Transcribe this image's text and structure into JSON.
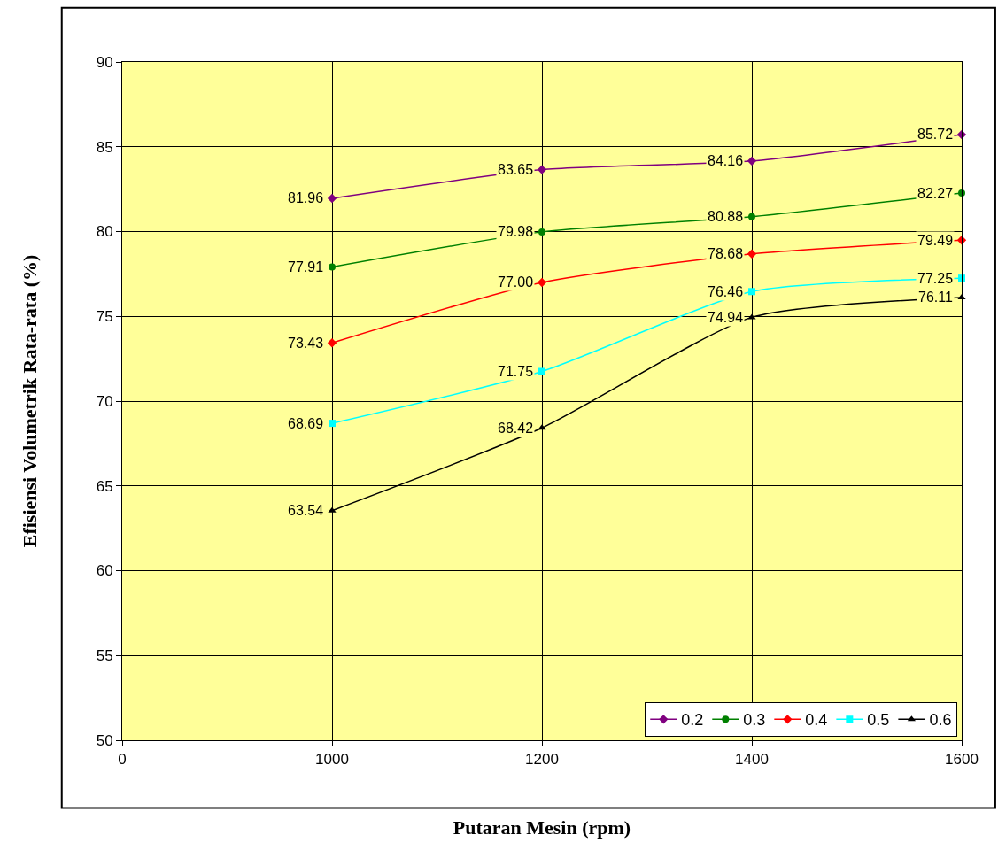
{
  "chart_data": {
    "type": "line",
    "xlabel": "Putaran Mesin (rpm)",
    "ylabel": "Efisiensi Volumetrik Rata-rata (%)",
    "categories": [
      "0",
      "1000",
      "1200",
      "1400",
      "1600"
    ],
    "ylim": [
      50,
      90
    ],
    "yticks": [
      50,
      55,
      60,
      65,
      70,
      75,
      80,
      85,
      90
    ],
    "grid": true,
    "legend": "bottom right",
    "series": [
      {
        "name": "0.2",
        "color": "#800080",
        "marker": "diamond",
        "values": [
          null,
          81.96,
          83.65,
          84.16,
          85.72
        ],
        "value_labels": [
          null,
          "81.96",
          "83.65",
          "84.16",
          "85.72"
        ]
      },
      {
        "name": "0.3",
        "color": "#008000",
        "marker": "circle",
        "values": [
          null,
          77.91,
          79.98,
          80.88,
          82.27
        ],
        "value_labels": [
          null,
          "77.91",
          "79.98",
          "80.88",
          "82.27"
        ]
      },
      {
        "name": "0.4",
        "color": "#ff0000",
        "marker": "diamond",
        "values": [
          null,
          73.43,
          77.0,
          78.68,
          79.49
        ],
        "value_labels": [
          null,
          "73.43",
          "77.00",
          "78.68",
          "79.49"
        ]
      },
      {
        "name": "0.5",
        "color": "#00ffff",
        "marker": "square",
        "values": [
          null,
          68.69,
          71.75,
          76.46,
          77.25
        ],
        "value_labels": [
          null,
          "68.69",
          "71.75",
          "76.46",
          "77.25"
        ]
      },
      {
        "name": "0.6",
        "color": "#000000",
        "marker": "triangle",
        "values": [
          null,
          63.54,
          68.42,
          74.94,
          76.11
        ],
        "value_labels": [
          null,
          "63.54",
          "68.42",
          "74.94",
          "76.11"
        ]
      }
    ]
  }
}
